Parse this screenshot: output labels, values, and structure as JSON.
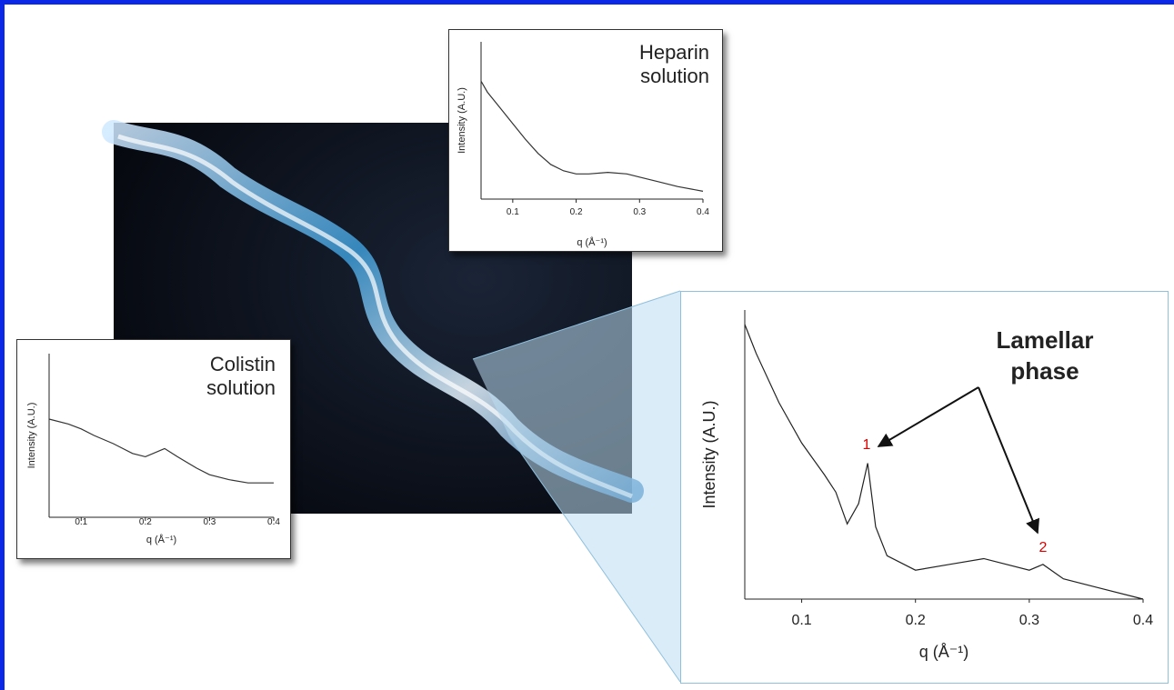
{
  "chart_data": [
    {
      "type": "line",
      "title": "Heparin solution",
      "x_label": "q (Å⁻¹)",
      "y_label": "Intensity (A.U.)",
      "x": [
        0.05,
        0.06,
        0.08,
        0.1,
        0.12,
        0.14,
        0.16,
        0.18,
        0.2,
        0.22,
        0.25,
        0.28,
        0.3,
        0.33,
        0.36,
        0.4
      ],
      "values": [
        75,
        68,
        58,
        48,
        38,
        29,
        22,
        18,
        16,
        16,
        17,
        16,
        14,
        11,
        8,
        5
      ],
      "color": "#333333",
      "xlim": [
        0.05,
        0.4
      ],
      "ylim": [
        0,
        100
      ],
      "xticks": [
        0.1,
        0.2,
        0.3,
        0.4
      ]
    },
    {
      "type": "line",
      "title": "Colistin solution",
      "x_label": "q (Å⁻¹)",
      "y_label": "Intensity (A.U.)",
      "x": [
        0.05,
        0.08,
        0.1,
        0.12,
        0.15,
        0.18,
        0.2,
        0.23,
        0.25,
        0.28,
        0.3,
        0.33,
        0.36,
        0.4
      ],
      "values": [
        60,
        57,
        54,
        50,
        45,
        39,
        37,
        42,
        37,
        30,
        26,
        23,
        21,
        21
      ],
      "color": "#333333",
      "xlim": [
        0.05,
        0.4
      ],
      "ylim": [
        0,
        100
      ],
      "xticks": [
        0.1,
        0.2,
        0.3,
        0.4
      ]
    },
    {
      "type": "line",
      "x_label": "q (Å⁻¹)",
      "y_label": "Intensity (A.U.)",
      "annotations": [
        "Lamellar phase",
        "1",
        "2"
      ],
      "x": [
        0.05,
        0.06,
        0.08,
        0.1,
        0.12,
        0.13,
        0.14,
        0.15,
        0.158,
        0.165,
        0.175,
        0.2,
        0.23,
        0.26,
        0.3,
        0.312,
        0.33,
        0.36,
        0.4
      ],
      "values": [
        95,
        85,
        68,
        54,
        43,
        37,
        26,
        33,
        47,
        25,
        15,
        10,
        12,
        14,
        10,
        12,
        7,
        4,
        0
      ],
      "color": "#222222",
      "xlim": [
        0.05,
        0.4
      ],
      "ylim": [
        0,
        100
      ],
      "xticks": [
        0.1,
        0.2,
        0.3,
        0.4
      ]
    }
  ]
}
